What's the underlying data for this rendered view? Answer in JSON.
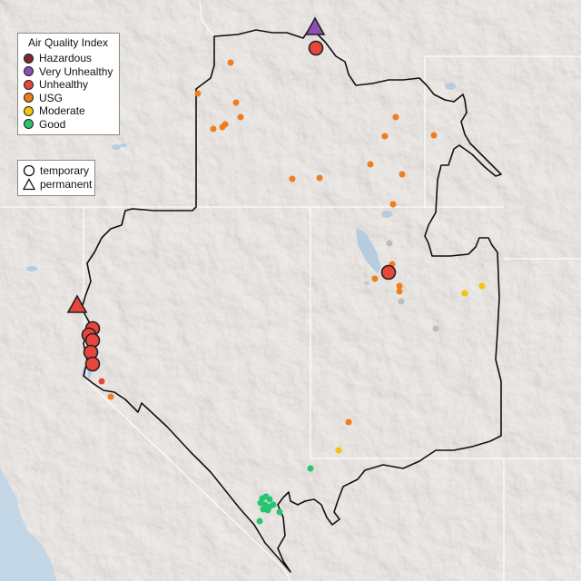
{
  "legend": {
    "title": "Air Quality Index",
    "categories": [
      {
        "label": "Hazardous",
        "color": "#7e2a2a"
      },
      {
        "label": "Very Unhealthy",
        "color": "#8f4fb2"
      },
      {
        "label": "Unhealthy",
        "color": "#e8463a"
      },
      {
        "label": "USG",
        "color": "#ee7d1f"
      },
      {
        "label": "Moderate",
        "color": "#f2c410"
      },
      {
        "label": "Good",
        "color": "#28c46f"
      }
    ],
    "monitor_types": [
      {
        "label": "temporary",
        "icon": "circle-icon"
      },
      {
        "label": "permanent",
        "icon": "triangle-icon"
      }
    ]
  },
  "colors": {
    "background": "#e7e3df",
    "ocean": "#c3d6e6",
    "water": "#b7ccdf",
    "region_border": "#111111",
    "state_border": "#ffffff",
    "no_data": "#bdbdbd"
  }
}
